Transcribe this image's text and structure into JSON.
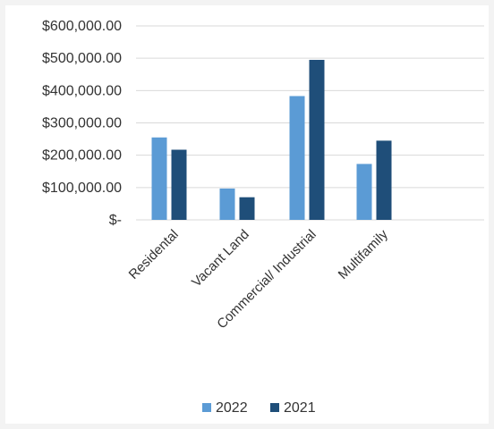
{
  "chart_data": {
    "type": "bar",
    "title": "",
    "xlabel": "",
    "ylabel": "",
    "categories": [
      "Residental",
      "Vacant Land",
      "Commercial/ Industrial",
      "Multifamily"
    ],
    "series": [
      {
        "name": "2022",
        "color": "#5b9bd5",
        "values": [
          255000,
          97000,
          383000,
          173000
        ]
      },
      {
        "name": "2021",
        "color": "#1f4e79",
        "values": [
          217000,
          70000,
          495000,
          245000
        ]
      }
    ],
    "ylim": [
      0,
      600000
    ],
    "yticks": [
      0,
      100000,
      200000,
      300000,
      400000,
      500000,
      600000
    ],
    "ytick_labels": [
      "$-",
      "$100,000.00",
      "$200,000.00",
      "$300,000.00",
      "$400,000.00",
      "$500,000.00",
      "$600,000.00"
    ],
    "grid": true,
    "legend": "bottom"
  }
}
